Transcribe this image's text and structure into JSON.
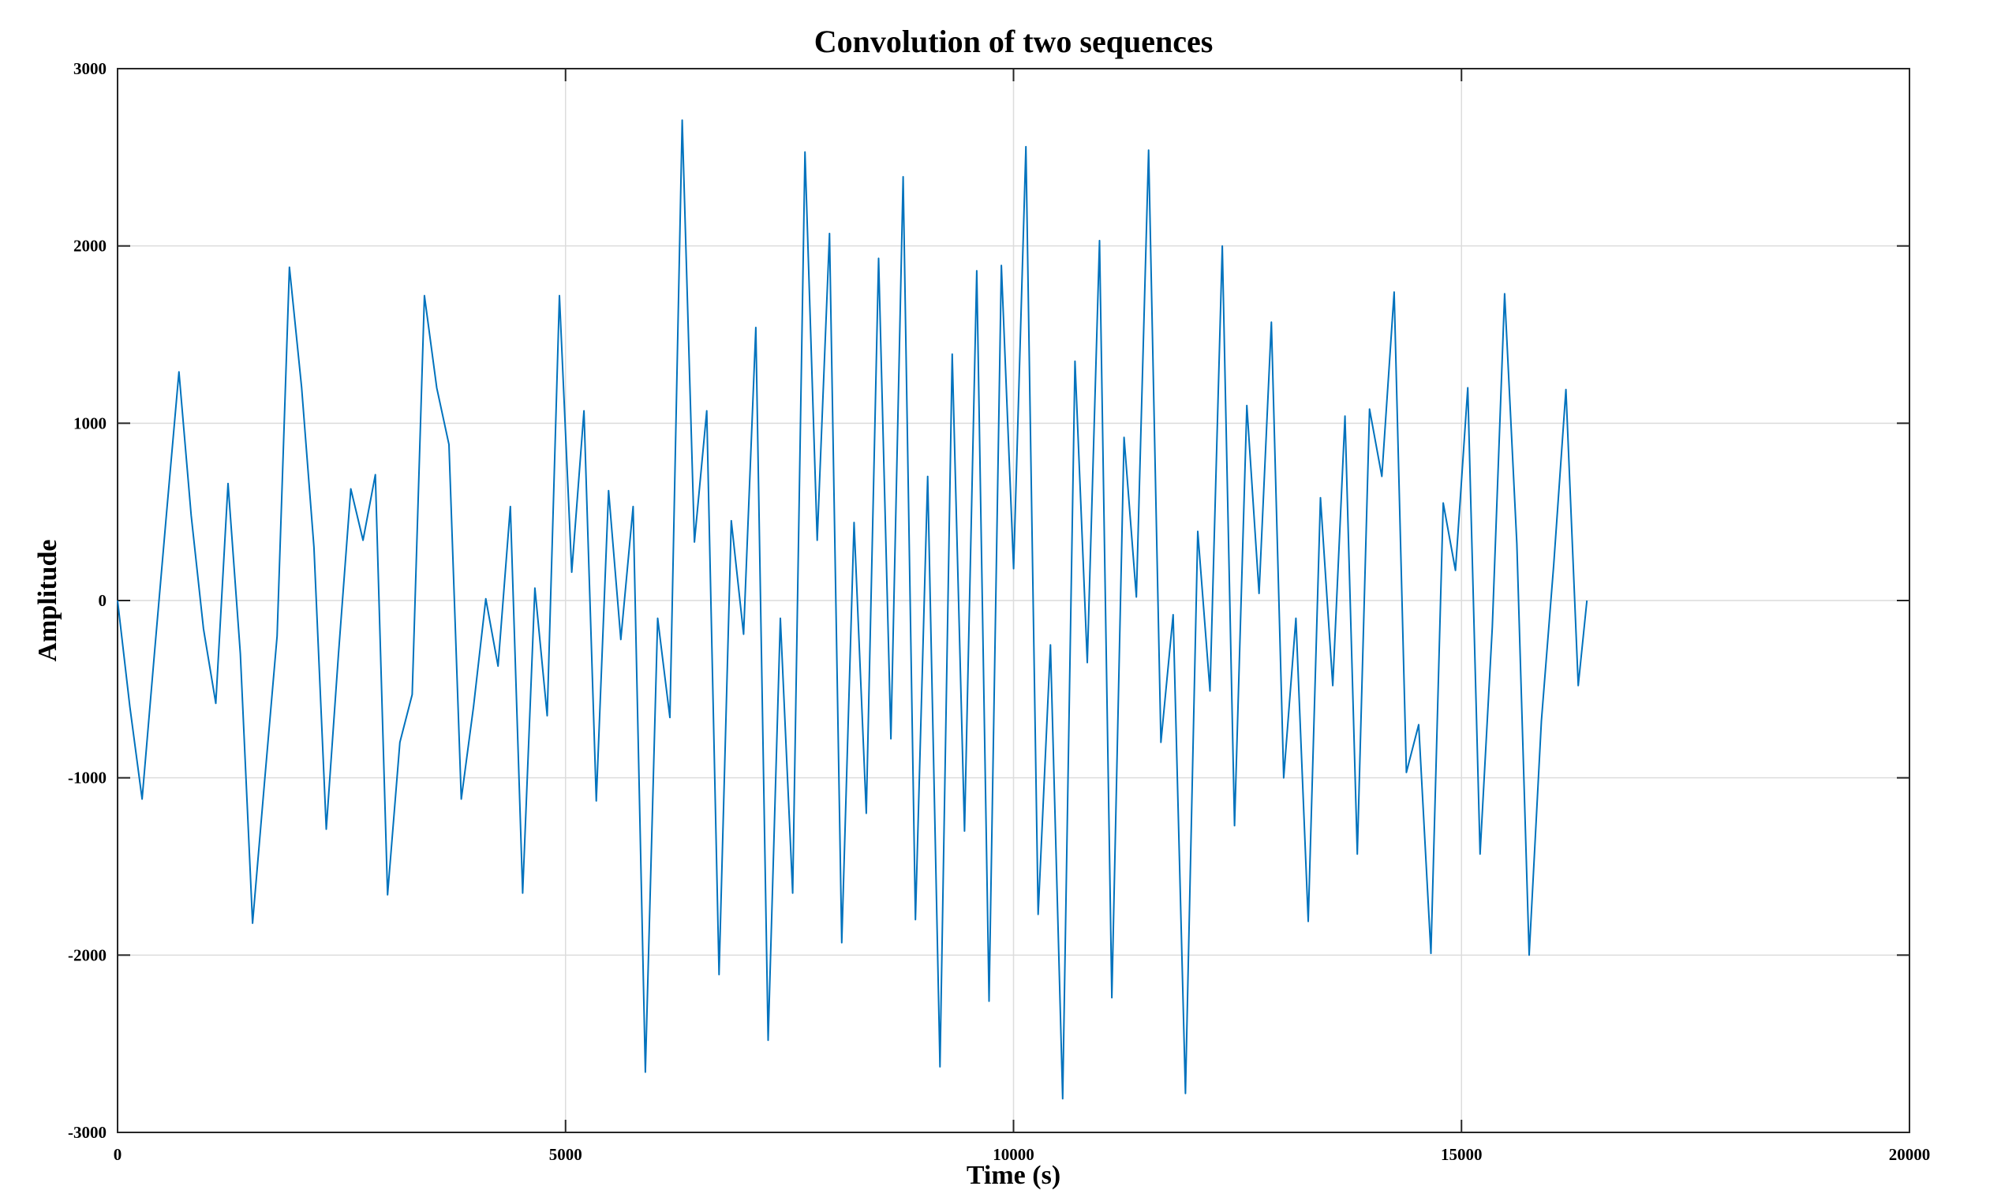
{
  "chart_data": {
    "type": "line",
    "title": "Convolution of two sequences",
    "xlabel": "Time (s)",
    "ylabel": "Amplitude",
    "xlim": [
      0,
      20000
    ],
    "ylim": [
      -3000,
      3000
    ],
    "xticks": [
      0,
      5000,
      10000,
      15000,
      20000
    ],
    "xtick_labels": [
      "0",
      "5000",
      "10000",
      "15000",
      "20000"
    ],
    "yticks": [
      -3000,
      -2000,
      -1000,
      0,
      1000,
      2000,
      3000
    ],
    "ytick_labels": [
      "-3000",
      "-2000",
      "-1000",
      "0",
      "1000",
      "2000",
      "3000"
    ],
    "grid": true,
    "series": [
      {
        "color": "#0072BD",
        "x": [
          0,
          137,
          274,
          411,
          548,
          685,
          822,
          959,
          1096,
          1233,
          1370,
          1507,
          1644,
          1781,
          1918,
          2055,
          2192,
          2329,
          2466,
          2603,
          2740,
          2877,
          3014,
          3151,
          3288,
          3425,
          3562,
          3699,
          3836,
          3973,
          4110,
          4247,
          4384,
          4521,
          4658,
          4795,
          4932,
          5069,
          5206,
          5343,
          5480,
          5617,
          5754,
          5891,
          6028,
          6165,
          6302,
          6439,
          6576,
          6713,
          6850,
          6987,
          7124,
          7261,
          7398,
          7535,
          7672,
          7809,
          7946,
          8083,
          8220,
          8357,
          8494,
          8631,
          8768,
          8905,
          9042,
          9179,
          9316,
          9453,
          9590,
          9727,
          9864,
          10001,
          10138,
          10275,
          10412,
          10549,
          10686,
          10823,
          10960,
          11097,
          11234,
          11371,
          11508,
          11645,
          11782,
          11919,
          12056,
          12193,
          12330,
          12467,
          12604,
          12741,
          12878,
          13015,
          13152,
          13289,
          13426,
          13563,
          13700,
          13837,
          13974,
          14111,
          14248,
          14385,
          14522,
          14659,
          14796,
          14933,
          15070,
          15207,
          15344,
          15481,
          15618,
          15755,
          15892,
          16029,
          16166,
          16303,
          16400
        ],
        "y": [
          0,
          -600,
          -1120,
          -300,
          500,
          1290,
          480,
          -160,
          -580,
          660,
          -300,
          -1820,
          -1000,
          -200,
          1880,
          1200,
          300,
          -1290,
          -300,
          630,
          340,
          710,
          -1660,
          -800,
          -530,
          1720,
          1200,
          880,
          -1120,
          -600,
          10,
          -370,
          530,
          -1650,
          70,
          -650,
          1720,
          160,
          1070,
          -1130,
          620,
          -220,
          530,
          -2660,
          -100,
          -660,
          2710,
          330,
          1070,
          -2110,
          450,
          -190,
          1540,
          -2480,
          -100,
          -1650,
          2530,
          340,
          2070,
          -1930,
          440,
          -1200,
          1930,
          -780,
          2390,
          -1800,
          700,
          -2630,
          1390,
          -1300,
          1860,
          -2260,
          1890,
          180,
          2560,
          -1770,
          -250,
          -2810,
          1350,
          -350,
          2030,
          -2240,
          920,
          20,
          2540,
          -800,
          -80,
          -2780,
          390,
          -510,
          2000,
          -1270,
          1100,
          40,
          1570,
          -1000,
          -100,
          -1810,
          580,
          -480,
          1040,
          -1430,
          1080,
          700,
          1740,
          -970,
          -700,
          -1990,
          550,
          170,
          1200,
          -1430,
          -150,
          1730,
          320,
          -2000,
          -680,
          200,
          1190,
          -480,
          0
        ]
      }
    ]
  }
}
